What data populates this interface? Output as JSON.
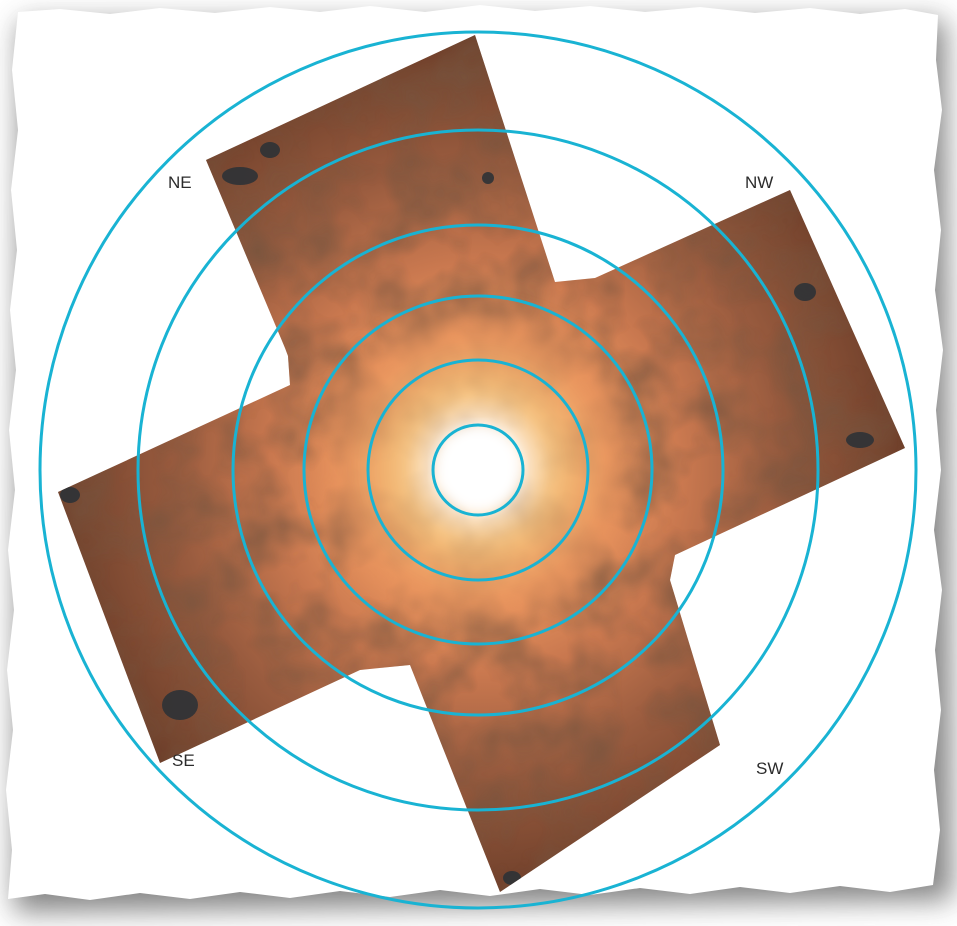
{
  "image": {
    "labels": {
      "ne": "NE",
      "nw": "NW",
      "se": "SE",
      "sw": "SW"
    },
    "colors": {
      "ring": "#19b3d3",
      "core": "#ffffff",
      "inner_glow": "#f3b66a",
      "mid_glow": "#d98a56",
      "outer": "#8a5238",
      "dark": "#3d2418",
      "paper": "#ffffff",
      "shadow": "#7a7a7a"
    },
    "ring_count": 6
  }
}
